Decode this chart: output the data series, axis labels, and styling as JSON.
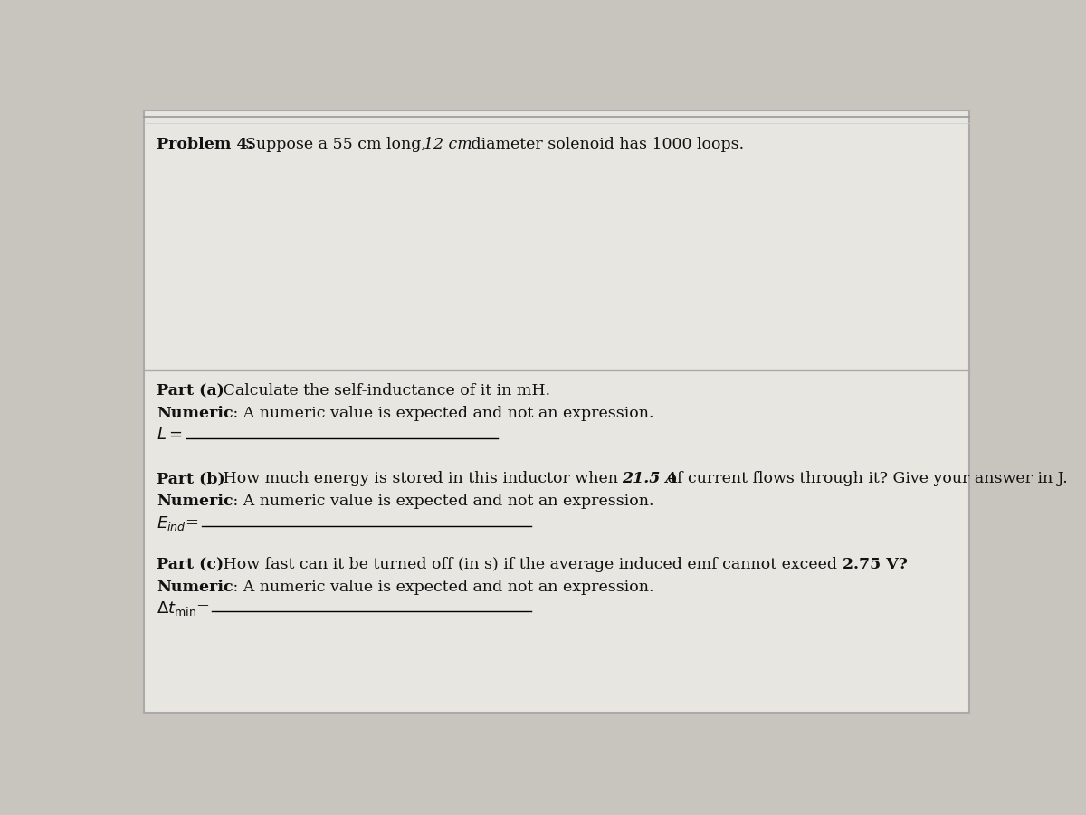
{
  "background_color": "#c8c5bf",
  "paper_color": "#e8e6e1",
  "border_color": "#aaaaaa",
  "text_color": "#111111",
  "line_color": "#555555",
  "problem_header": "Problem 4:",
  "problem_desc_1": "  Suppose a 55 cm long, ",
  "problem_desc_italic": "12 cm",
  "problem_desc_2": " diameter solenoid has 1000 loops.",
  "part_a_label": "Part (a)",
  "part_a_desc": " Calculate the self-inductance of it in mH.",
  "part_a_numeric_bold": "Numeric",
  "part_a_numeric_rest": "   : A numeric value is expected and not an expression.",
  "part_a_var": "L =",
  "part_b_label": "Part (b)",
  "part_b_desc_1": " How much energy is stored in this inductor when ",
  "part_b_desc_bold": "21.5 A",
  "part_b_desc_2": " of current flows through it? Give your answer in J.",
  "part_b_numeric_bold": "Numeric",
  "part_b_numeric_rest": "   : A numeric value is expected and not an expression.",
  "part_b_var": "E_ind =",
  "part_c_label": "Part (c)",
  "part_c_desc_1": " How fast can it be turned off (in s) if the average induced emf cannot exceed ",
  "part_c_desc_bold": "2.75 V?",
  "part_c_numeric_bold": "Numeric",
  "part_c_numeric_rest": "   : A numeric value is expected and not an expression.",
  "part_c_var": "dt_min ="
}
